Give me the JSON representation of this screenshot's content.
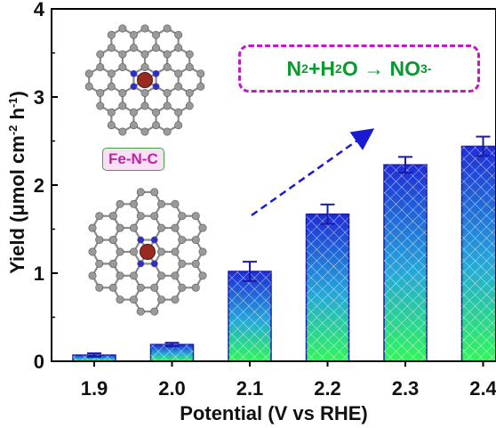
{
  "chart_data": {
    "type": "bar",
    "categories": [
      "1.9",
      "2.0",
      "2.1",
      "2.2",
      "2.3",
      "2.4"
    ],
    "values": [
      0.07,
      0.19,
      1.02,
      1.67,
      2.23,
      2.44
    ],
    "errors": [
      0.02,
      0.02,
      0.11,
      0.11,
      0.09,
      0.11
    ],
    "xlabel": "Potential (V vs RHE)",
    "ylabel_main": "Yield (",
    "ylabel_mu": "μ",
    "ylabel_mol": "mol cm",
    "ylabel_exp1": "-2",
    "ylabel_h": " h",
    "ylabel_exp2": "-1",
    "ylabel_close": ")",
    "ylim": [
      0,
      4
    ],
    "yticks": [
      "0",
      "1",
      "2",
      "3",
      "4"
    ],
    "bar_color_top": "#1f2dd6",
    "bar_color_bottom": "#33f55a",
    "bar_edge": "#1a1aa8",
    "grid": false
  },
  "annotations": {
    "reaction_n2": "N",
    "reaction_n2_sub": "2",
    "reaction_mid": "+H",
    "reaction_h2o_sub": "2",
    "reaction_o": "O → NO",
    "reaction_no3_sub": "3",
    "reaction_no3_sup": "-",
    "catalyst_label": "Fe-N-C"
  },
  "colors": {
    "arrow": "#1a1ad1",
    "box_border": "#c318c3",
    "reaction_text": "#0a9a2e",
    "tag_text": "#c020a6",
    "tag_fill": "#fbe0f5",
    "carbon": "#9a9a9a",
    "nitrogen": "#2b2bd9",
    "iron": "#9b2a22"
  }
}
